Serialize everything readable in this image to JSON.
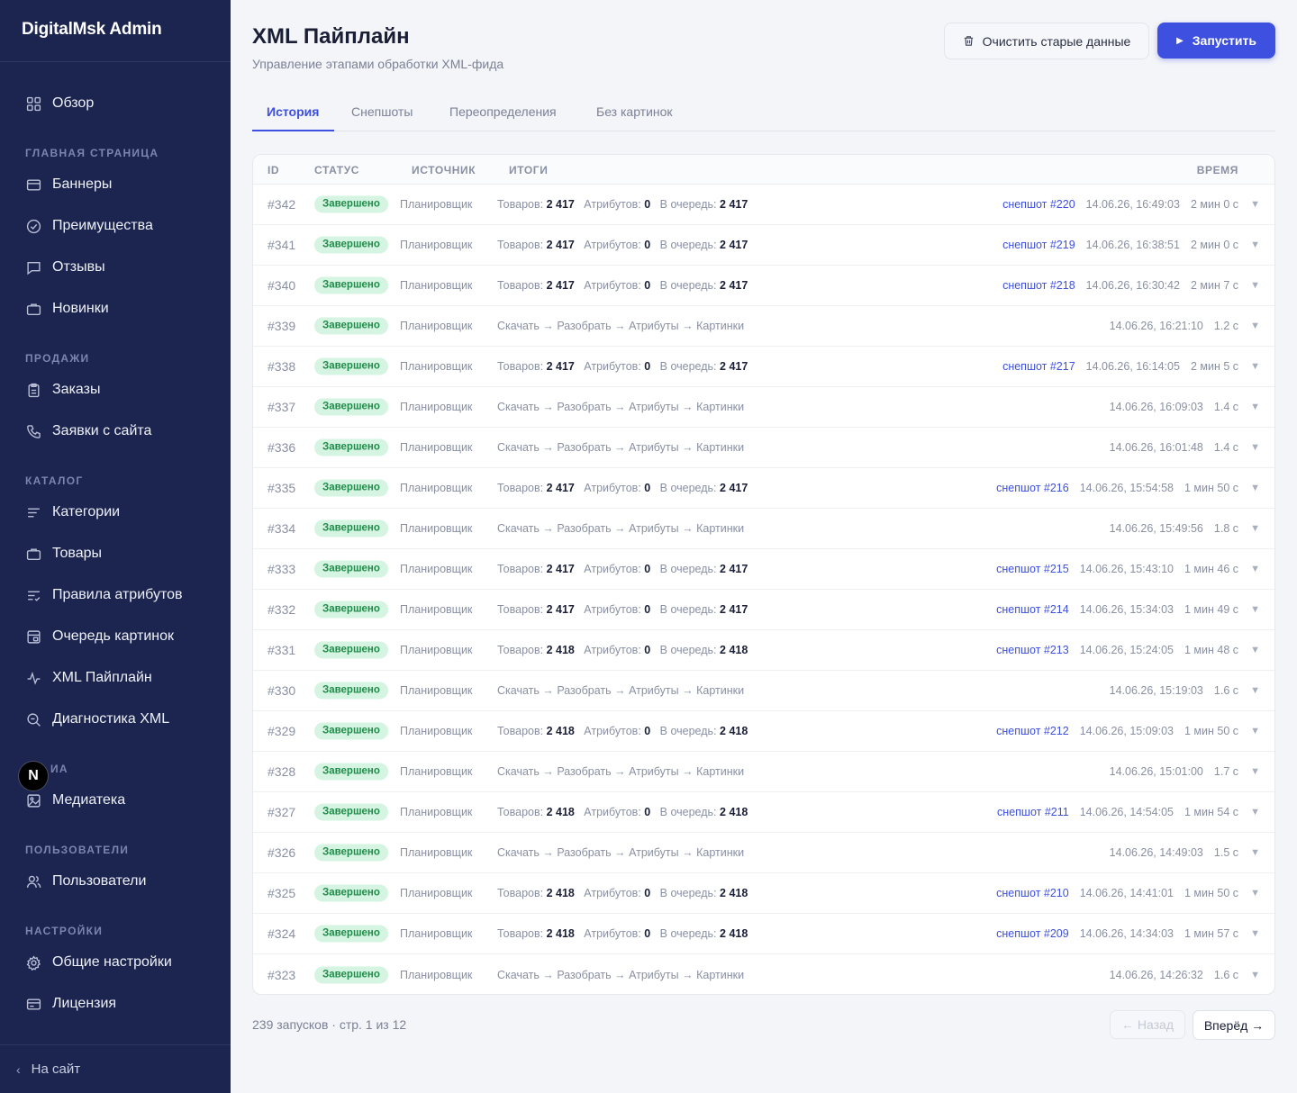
{
  "sidebar": {
    "brand": "DigitalMsk Admin",
    "overview": "Обзор",
    "sections": {
      "home": "ГЛАВНАЯ СТРАНИЦА",
      "sales": "ПРОДАЖИ",
      "catalog": "КАТАЛОГ",
      "media": "ИА",
      "users": "ПОЛЬЗОВАТЕЛИ",
      "settings": "НАСТРОЙКИ"
    },
    "items": {
      "banners": "Баннеры",
      "advantages": "Преимущества",
      "reviews": "Отзывы",
      "novelties": "Новинки",
      "orders": "Заказы",
      "requests": "Заявки с сайта",
      "categories": "Категории",
      "products": "Товары",
      "attr_rules": "Правила атрибутов",
      "image_queue": "Очередь картинок",
      "xml_pipeline": "XML Пайплайн",
      "xml_diag": "Диагностика XML",
      "media_lib": "Медиатека",
      "users": "Пользователи",
      "general_settings": "Общие настройки",
      "license": "Лицензия"
    },
    "back_to_site": "На сайт",
    "badge_letter": "N"
  },
  "page": {
    "title": "XML Пайплайн",
    "subtitle": "Управление этапами обработки XML-фида",
    "clear_button": "Очистить старые данные",
    "run_button": "Запустить"
  },
  "tabs": [
    "История",
    "Снепшоты",
    "Переопределения",
    "Без картинок"
  ],
  "table": {
    "headers": {
      "id": "ID",
      "status": "СТАТУС",
      "source": "ИСТОЧНИК",
      "summary": "ИТОГИ",
      "time": "ВРЕМЯ"
    },
    "labels": {
      "products": "Товаров:",
      "attributes": "Атрибутов:",
      "queue": "В очередь:"
    },
    "rows": [
      {
        "id": "#342",
        "status": "Завершено",
        "source": "Планировщик",
        "products": "2 417",
        "attributes": "0",
        "queue": "2 417",
        "snapshot": "снепшот #220",
        "datetime": "14.06.26, 16:49:03",
        "duration": "2 мин 0 с"
      },
      {
        "id": "#341",
        "status": "Завершено",
        "source": "Планировщик",
        "products": "2 417",
        "attributes": "0",
        "queue": "2 417",
        "snapshot": "снепшот #219",
        "datetime": "14.06.26, 16:38:51",
        "duration": "2 мин 0 с"
      },
      {
        "id": "#340",
        "status": "Завершено",
        "source": "Планировщик",
        "products": "2 417",
        "attributes": "0",
        "queue": "2 417",
        "snapshot": "снепшот #218",
        "datetime": "14.06.26, 16:30:42",
        "duration": "2 мин 7 с"
      },
      {
        "id": "#339",
        "status": "Завершено",
        "source": "Планировщик",
        "steps": "Скачать → Разобрать → Атрибуты → Картинки",
        "datetime": "14.06.26, 16:21:10",
        "duration": "1.2 с"
      },
      {
        "id": "#338",
        "status": "Завершено",
        "source": "Планировщик",
        "products": "2 417",
        "attributes": "0",
        "queue": "2 417",
        "snapshot": "снепшот #217",
        "datetime": "14.06.26, 16:14:05",
        "duration": "2 мин 5 с"
      },
      {
        "id": "#337",
        "status": "Завершено",
        "source": "Планировщик",
        "steps": "Скачать → Разобрать → Атрибуты → Картинки",
        "datetime": "14.06.26, 16:09:03",
        "duration": "1.4 с"
      },
      {
        "id": "#336",
        "status": "Завершено",
        "source": "Планировщик",
        "steps": "Скачать → Разобрать → Атрибуты → Картинки",
        "datetime": "14.06.26, 16:01:48",
        "duration": "1.4 с"
      },
      {
        "id": "#335",
        "status": "Завершено",
        "source": "Планировщик",
        "products": "2 417",
        "attributes": "0",
        "queue": "2 417",
        "snapshot": "снепшот #216",
        "datetime": "14.06.26, 15:54:58",
        "duration": "1 мин 50 с"
      },
      {
        "id": "#334",
        "status": "Завершено",
        "source": "Планировщик",
        "steps": "Скачать → Разобрать → Атрибуты → Картинки",
        "datetime": "14.06.26, 15:49:56",
        "duration": "1.8 с"
      },
      {
        "id": "#333",
        "status": "Завершено",
        "source": "Планировщик",
        "products": "2 417",
        "attributes": "0",
        "queue": "2 417",
        "snapshot": "снепшот #215",
        "datetime": "14.06.26, 15:43:10",
        "duration": "1 мин 46 с"
      },
      {
        "id": "#332",
        "status": "Завершено",
        "source": "Планировщик",
        "products": "2 417",
        "attributes": "0",
        "queue": "2 417",
        "snapshot": "снепшот #214",
        "datetime": "14.06.26, 15:34:03",
        "duration": "1 мин 49 с"
      },
      {
        "id": "#331",
        "status": "Завершено",
        "source": "Планировщик",
        "products": "2 418",
        "attributes": "0",
        "queue": "2 418",
        "snapshot": "снепшот #213",
        "datetime": "14.06.26, 15:24:05",
        "duration": "1 мин 48 с"
      },
      {
        "id": "#330",
        "status": "Завершено",
        "source": "Планировщик",
        "steps": "Скачать → Разобрать → Атрибуты → Картинки",
        "datetime": "14.06.26, 15:19:03",
        "duration": "1.6 с"
      },
      {
        "id": "#329",
        "status": "Завершено",
        "source": "Планировщик",
        "products": "2 418",
        "attributes": "0",
        "queue": "2 418",
        "snapshot": "снепшот #212",
        "datetime": "14.06.26, 15:09:03",
        "duration": "1 мин 50 с"
      },
      {
        "id": "#328",
        "status": "Завершено",
        "source": "Планировщик",
        "steps": "Скачать → Разобрать → Атрибуты → Картинки",
        "datetime": "14.06.26, 15:01:00",
        "duration": "1.7 с"
      },
      {
        "id": "#327",
        "status": "Завершено",
        "source": "Планировщик",
        "products": "2 418",
        "attributes": "0",
        "queue": "2 418",
        "snapshot": "снепшот #211",
        "datetime": "14.06.26, 14:54:05",
        "duration": "1 мин 54 с"
      },
      {
        "id": "#326",
        "status": "Завершено",
        "source": "Планировщик",
        "steps": "Скачать → Разобрать → Атрибуты → Картинки",
        "datetime": "14.06.26, 14:49:03",
        "duration": "1.5 с"
      },
      {
        "id": "#325",
        "status": "Завершено",
        "source": "Планировщик",
        "products": "2 418",
        "attributes": "0",
        "queue": "2 418",
        "snapshot": "снепшот #210",
        "datetime": "14.06.26, 14:41:01",
        "duration": "1 мин 50 с"
      },
      {
        "id": "#324",
        "status": "Завершено",
        "source": "Планировщик",
        "products": "2 418",
        "attributes": "0",
        "queue": "2 418",
        "snapshot": "снепшот #209",
        "datetime": "14.06.26, 14:34:03",
        "duration": "1 мин 57 с"
      },
      {
        "id": "#323",
        "status": "Завершено",
        "source": "Планировщик",
        "steps": "Скачать → Разобрать → Атрибуты → Картинки",
        "datetime": "14.06.26, 14:26:32",
        "duration": "1.6 с"
      }
    ]
  },
  "footer": {
    "info": "239 запусков · стр. 1 из 12",
    "prev": "← Назад",
    "next": "Вперёд →"
  },
  "colors": {
    "sidebar_bg": "#1b2550",
    "accent": "#3d50e0",
    "status_bg": "#d5f4e1",
    "status_fg": "#1f8d4a"
  }
}
